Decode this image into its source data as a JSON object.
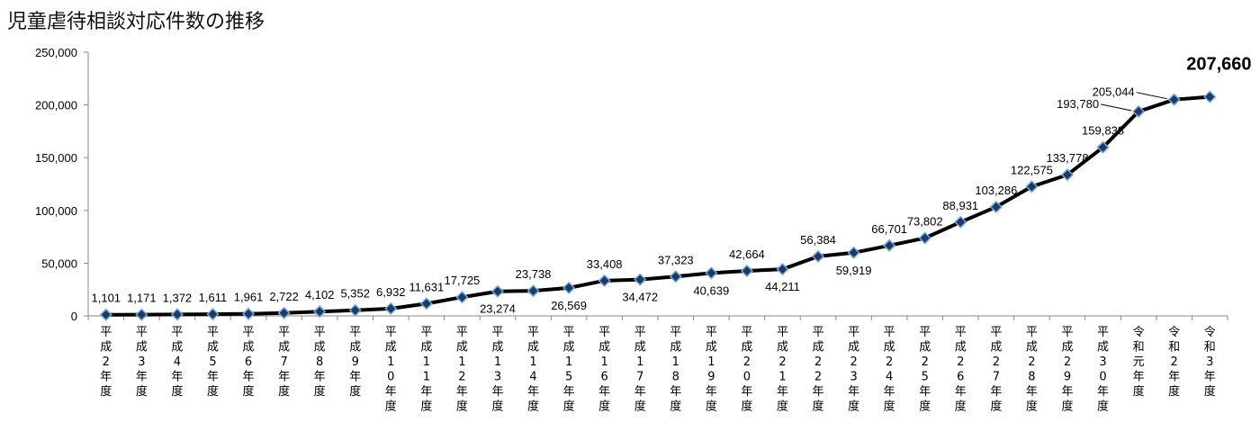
{
  "chart_data": {
    "type": "line",
    "title": "児童虐待相談対応件数の推移",
    "xlabel": "",
    "ylabel": "",
    "ylim": [
      0,
      250000
    ],
    "yticks": [
      0,
      50000,
      100000,
      150000,
      200000,
      250000
    ],
    "ytick_labels": [
      "0",
      "50,000",
      "100,000",
      "150,000",
      "200,000",
      "250,000"
    ],
    "grid": false,
    "legend": "none",
    "line_color": "#000000",
    "marker_color": "#1f3864",
    "categories": [
      "平成2年度",
      "平成3年度",
      "平成4年度",
      "平成5年度",
      "平成6年度",
      "平成7年度",
      "平成8年度",
      "平成9年度",
      "平成10年度",
      "平成11年度",
      "平成12年度",
      "平成13年度",
      "平成14年度",
      "平成15年度",
      "平成16年度",
      "平成17年度",
      "平成18年度",
      "平成19年度",
      "平成20年度",
      "平成21年度",
      "平成22年度",
      "平成23年度",
      "平成24年度",
      "平成25年度",
      "平成26年度",
      "平成27年度",
      "平成28年度",
      "平成29年度",
      "平成30年度",
      "令和元年度",
      "令和2年度",
      "令和3年度"
    ],
    "values": [
      1101,
      1171,
      1372,
      1611,
      1961,
      2722,
      4102,
      5352,
      6932,
      11631,
      17725,
      23274,
      23738,
      26569,
      33408,
      34472,
      37323,
      40639,
      42664,
      44211,
      56384,
      59919,
      66701,
      73802,
      88931,
      103286,
      122575,
      133778,
      159838,
      193780,
      205044,
      207660
    ],
    "value_labels": [
      "1,101",
      "1,171",
      "1,372",
      "1,611",
      "1,961",
      "2,722",
      "4,102",
      "5,352",
      "6,932",
      "11,631",
      "17,725",
      "23,274",
      "23,738",
      "26,569",
      "33,408",
      "34,472",
      "37,323",
      "40,639",
      "42,664",
      "44,211",
      "56,384",
      "59,919",
      "66,701",
      "73,802",
      "88,931",
      "103,286",
      "122,575",
      "133,778",
      "159,838",
      "193,780",
      "205,044",
      "207,660"
    ],
    "label_positions": [
      "above",
      "above",
      "above",
      "above",
      "above",
      "above",
      "above",
      "above",
      "above",
      "above",
      "above",
      "below",
      "above",
      "below",
      "above",
      "below",
      "above",
      "below",
      "above",
      "below",
      "above",
      "below",
      "above",
      "above",
      "above",
      "above",
      "above",
      "above",
      "above",
      "left",
      "left",
      "above-right"
    ],
    "highlight_last": true
  }
}
